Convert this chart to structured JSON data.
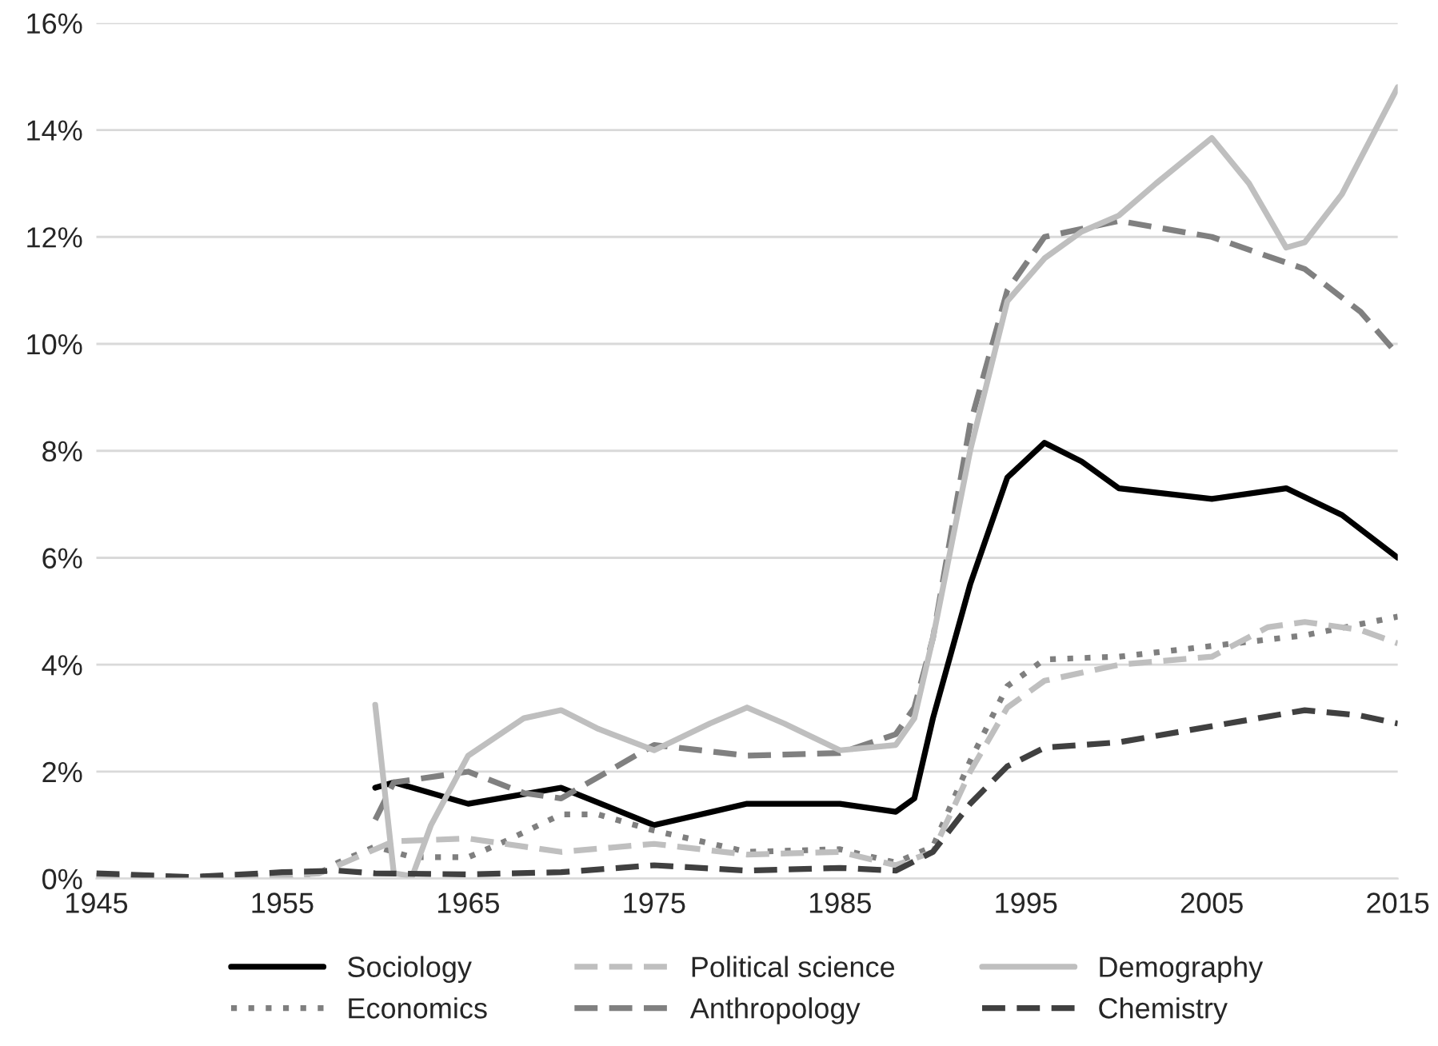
{
  "chart_data": {
    "type": "line",
    "xlim": [
      1945,
      2015
    ],
    "xticks": [
      1945,
      1955,
      1965,
      1975,
      1985,
      1995,
      2005,
      2015
    ],
    "ylim": [
      0,
      16
    ],
    "yticks": [
      {
        "value": 0,
        "label": "0%"
      },
      {
        "value": 2,
        "label": "2%"
      },
      {
        "value": 4,
        "label": "4%"
      },
      {
        "value": 6,
        "label": "6%"
      },
      {
        "value": 8,
        "label": "8%"
      },
      {
        "value": 10,
        "label": "10%"
      },
      {
        "value": 12,
        "label": "12%"
      },
      {
        "value": 14,
        "label": "14%"
      },
      {
        "value": 16,
        "label": "16%"
      }
    ],
    "grid": "y",
    "legend": "bottom",
    "marker": "none",
    "series": [
      {
        "name": "Sociology",
        "color": "#000000",
        "line_style": "solid",
        "x": [
          1960,
          1961,
          1965,
          1970,
          1975,
          1980,
          1985,
          1988,
          1989,
          1990,
          1992,
          1994,
          1996,
          1998,
          2000,
          2005,
          2009,
          2012,
          2015
        ],
        "values": [
          1.7,
          1.8,
          1.4,
          1.7,
          1.0,
          1.4,
          1.4,
          1.25,
          1.5,
          3.0,
          5.5,
          7.5,
          8.15,
          7.8,
          7.3,
          7.1,
          7.3,
          6.8,
          6.0
        ]
      },
      {
        "name": "Economics",
        "color": "#7f7f7f",
        "line_style": "dotted",
        "x": [
          1945,
          1950,
          1955,
          1957,
          1958,
          1960,
          1962,
          1965,
          1967,
          1970,
          1972,
          1975,
          1980,
          1985,
          1988,
          1990,
          1992,
          1994,
          1996,
          2000,
          2005,
          2010,
          2015
        ],
        "values": [
          0.05,
          0.03,
          0.05,
          0.1,
          0.3,
          0.6,
          0.4,
          0.4,
          0.7,
          1.2,
          1.2,
          0.9,
          0.5,
          0.55,
          0.3,
          0.6,
          2.2,
          3.6,
          4.1,
          4.15,
          4.35,
          4.55,
          4.9
        ]
      },
      {
        "name": "Political science",
        "color": "#bfbfbf",
        "line_style": "dashed",
        "x": [
          1945,
          1950,
          1955,
          1957,
          1959,
          1961,
          1965,
          1968,
          1970,
          1975,
          1980,
          1985,
          1988,
          1990,
          1992,
          1994,
          1996,
          2000,
          2005,
          2008,
          2010,
          2013,
          2015
        ],
        "values": [
          0.05,
          0.03,
          0.05,
          0.1,
          0.4,
          0.7,
          0.75,
          0.6,
          0.5,
          0.65,
          0.45,
          0.5,
          0.25,
          0.5,
          2.0,
          3.2,
          3.7,
          4.0,
          4.15,
          4.7,
          4.8,
          4.65,
          4.4
        ]
      },
      {
        "name": "Anthropology",
        "color": "#808080",
        "line_style": "dashed",
        "x": [
          1960,
          1961,
          1965,
          1968,
          1970,
          1975,
          1980,
          1985,
          1988,
          1989,
          1990,
          1992,
          1994,
          1996,
          2000,
          2005,
          2010,
          2013,
          2015
        ],
        "values": [
          1.1,
          1.8,
          2.0,
          1.6,
          1.5,
          2.5,
          2.3,
          2.35,
          2.7,
          3.2,
          4.5,
          8.5,
          11.0,
          12.0,
          12.3,
          12.0,
          11.4,
          10.6,
          9.8
        ]
      },
      {
        "name": "Demography",
        "color": "#bfbfbf",
        "line_style": "solid",
        "x": [
          1960,
          1961,
          1962,
          1963,
          1965,
          1968,
          1970,
          1972,
          1975,
          1978,
          1980,
          1982,
          1985,
          1988,
          1989,
          1990,
          1992,
          1994,
          1996,
          1998,
          2000,
          2002,
          2005,
          2007,
          2009,
          2010,
          2012,
          2015
        ],
        "values": [
          3.25,
          0.1,
          0.05,
          1.0,
          2.3,
          3.0,
          3.15,
          2.8,
          2.4,
          2.9,
          3.2,
          2.9,
          2.4,
          2.5,
          3.0,
          4.5,
          8.0,
          10.8,
          11.6,
          12.1,
          12.4,
          13.0,
          13.85,
          13.0,
          11.8,
          11.9,
          12.8,
          14.8
        ]
      },
      {
        "name": "Chemistry",
        "color": "#404040",
        "line_style": "dashed",
        "x": [
          1945,
          1950,
          1955,
          1958,
          1960,
          1965,
          1970,
          1975,
          1980,
          1985,
          1988,
          1990,
          1992,
          1994,
          1996,
          2000,
          2005,
          2010,
          2013,
          2015
        ],
        "values": [
          0.1,
          0.03,
          0.12,
          0.15,
          0.1,
          0.08,
          0.12,
          0.25,
          0.15,
          0.2,
          0.15,
          0.5,
          1.4,
          2.1,
          2.45,
          2.55,
          2.85,
          3.15,
          3.05,
          2.9
        ]
      }
    ]
  }
}
